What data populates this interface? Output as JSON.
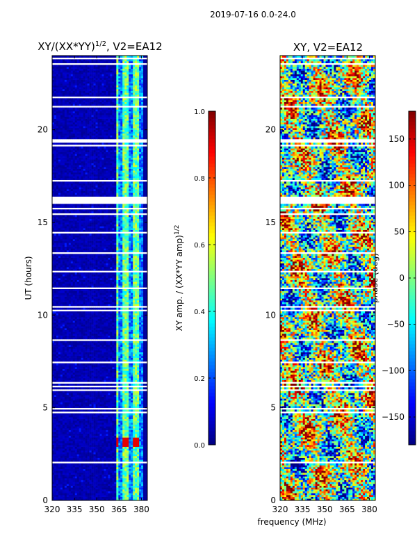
{
  "suptitle": "2019-07-16 0.0-24.0",
  "chart_data": [
    {
      "type": "heatmap",
      "title": "XY/(XX*YY)^{1/2}, V2=EA12",
      "title_main": "XY/(XX*YY)",
      "title_exp": "1/2",
      "title_tail": ", V2=EA12",
      "xlabel": "",
      "ylabel": "UT (hours)",
      "xlim": [
        320,
        384
      ],
      "ylim": [
        0,
        24
      ],
      "xticks": [
        "320",
        "335",
        "350",
        "365",
        "380"
      ],
      "xtick_values": [
        320,
        335,
        350,
        365,
        380
      ],
      "yticks": [
        "0",
        "5",
        "10",
        "15",
        "20"
      ],
      "ytick_values": [
        0,
        5,
        10,
        15,
        20
      ],
      "colormap": "jet",
      "colorbar": {
        "label": "XY amp. / (XX*YY amp)^{1/2}",
        "label_main": "XY amp. / (XX*YY amp)",
        "label_exp": "1/2",
        "range": [
          0.0,
          1.0
        ],
        "ticks": [
          "0.0",
          "0.2",
          "0.4",
          "0.6",
          "0.8",
          "1.0"
        ],
        "tick_values": [
          0.0,
          0.2,
          0.4,
          0.6,
          0.8,
          1.0
        ]
      },
      "description": "Amplitude mostly low (~0.0-0.1) below 363 MHz; elevated bands (~0.4-0.6) between 363-381 MHz; peaks near 0.9 around 3 hours UT."
    },
    {
      "type": "heatmap",
      "title": "XY, V2=EA12",
      "xlabel": "frequency (MHz)",
      "ylabel": "",
      "xlim": [
        320,
        384
      ],
      "ylim": [
        0,
        24
      ],
      "xticks": [
        "320",
        "335",
        "350",
        "365",
        "380"
      ],
      "xtick_values": [
        320,
        335,
        350,
        365,
        380
      ],
      "yticks": [
        "0",
        "5",
        "10",
        "15",
        "20"
      ],
      "ytick_values": [
        0,
        5,
        10,
        15,
        20
      ],
      "colormap": "jet",
      "colorbar": {
        "label": "phase (deg)",
        "range": [
          -180,
          180
        ],
        "ticks": [
          "−150",
          "−100",
          "−50",
          "0",
          "50",
          "100",
          "150"
        ],
        "tick_values": [
          -150,
          -100,
          -50,
          0,
          50,
          100,
          150
        ]
      },
      "description": "Phase spans full range from -180 to 180 degrees with noisy structure across all frequencies and times."
    }
  ]
}
